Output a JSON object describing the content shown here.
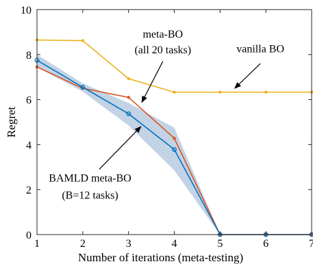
{
  "chart_data": {
    "type": "line",
    "xlabel": "Number of iterations (meta-testing)",
    "ylabel": "Regret",
    "xlim": [
      1,
      7
    ],
    "ylim": [
      0,
      10
    ],
    "x_ticks": [
      1,
      2,
      3,
      4,
      5,
      6,
      7
    ],
    "y_ticks": [
      0,
      2,
      4,
      6,
      8,
      10
    ],
    "grid": false,
    "box": true,
    "series": [
      {
        "key": "vanilla-bo",
        "color": "#EDB120",
        "marker": "dot",
        "x": [
          1,
          2,
          3,
          4,
          5,
          6,
          7
        ],
        "values": [
          8.65,
          8.62,
          6.93,
          6.33,
          6.33,
          6.33,
          6.33
        ]
      },
      {
        "key": "meta-bo",
        "color": "#D95319",
        "marker": "dot",
        "x": [
          1,
          2,
          3,
          4,
          5,
          6,
          7
        ],
        "values": [
          7.45,
          6.5,
          6.1,
          4.28,
          0.0,
          0.0,
          0.0
        ]
      },
      {
        "key": "bamld-meta-bo",
        "color": "#0072BD",
        "marker": "circle",
        "x": [
          1,
          2,
          3,
          4,
          5,
          6,
          7
        ],
        "values": [
          7.75,
          6.55,
          5.37,
          3.78,
          0.0,
          0.0,
          0.0
        ],
        "band_upper": [
          8.0,
          6.72,
          5.85,
          4.75,
          0.0,
          0.0,
          0.0
        ],
        "band_lower": [
          7.45,
          6.35,
          4.85,
          2.85,
          0.0,
          0.0,
          0.0
        ],
        "band_color": "#C3D3E6"
      }
    ],
    "annotations": [
      {
        "key": "meta-bo-label",
        "lines": [
          "meta-BO",
          "(all 20 tasks)"
        ],
        "text_x": 3.75,
        "text_y": [
          8.75,
          8.05
        ],
        "arrow_from": [
          3.75,
          7.7
        ],
        "arrow_to": [
          3.29,
          5.88
        ]
      },
      {
        "key": "vanilla-bo-label",
        "lines": [
          "vanilla BO"
        ],
        "text_x": 5.88,
        "text_y": [
          8.1
        ],
        "arrow_from": [
          5.88,
          7.6
        ],
        "arrow_to": [
          5.32,
          6.5
        ]
      },
      {
        "key": "bamld-label",
        "lines": [
          "BAMLD meta-BO",
          "(B=12 tasks)"
        ],
        "text_x": 2.16,
        "text_y": [
          2.35,
          1.6
        ],
        "arrow_from": [
          2.36,
          2.9
        ],
        "arrow_to": [
          3.27,
          4.8
        ]
      }
    ]
  }
}
